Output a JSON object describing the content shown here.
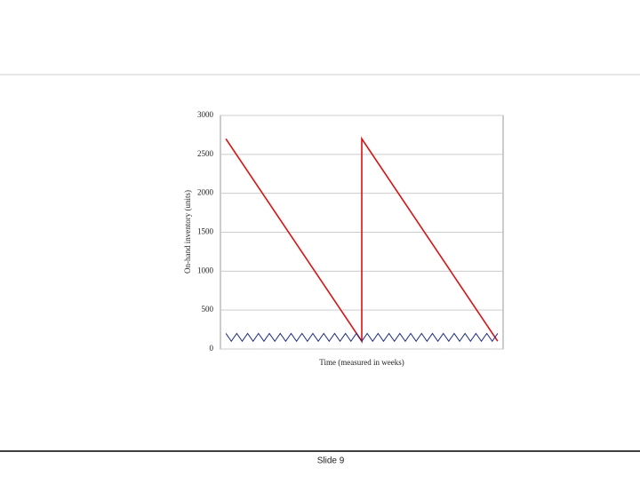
{
  "footer": {
    "text": "Slide 9"
  },
  "chart_data": {
    "type": "line",
    "ylabel": "On-hand inventory (units)",
    "xlabel": "Time (measured in weeks)",
    "xlim": [
      0,
      52
    ],
    "ylim": [
      0,
      3000
    ],
    "yticks": [
      0,
      500,
      1000,
      1500,
      2000,
      2500,
      3000
    ],
    "grid": true,
    "series": [
      {
        "color": "#dd1111",
        "x": [
          1,
          26,
          26,
          51
        ],
        "values": [
          2700,
          100,
          2700,
          100
        ]
      },
      {
        "color": "#1a2a8a",
        "x": [
          1,
          2,
          3,
          4,
          5,
          6,
          7,
          8,
          9,
          10,
          11,
          12,
          13,
          14,
          15,
          16,
          17,
          18,
          19,
          20,
          21,
          22,
          23,
          24,
          25,
          26,
          27,
          28,
          29,
          30,
          31,
          32,
          33,
          34,
          35,
          36,
          37,
          38,
          39,
          40,
          41,
          42,
          43,
          44,
          45,
          46,
          47,
          48,
          49,
          50,
          51
        ],
        "values": [
          200,
          100,
          200,
          100,
          200,
          100,
          200,
          100,
          200,
          100,
          200,
          100,
          200,
          100,
          200,
          100,
          200,
          100,
          200,
          100,
          200,
          100,
          200,
          100,
          200,
          100,
          200,
          100,
          200,
          100,
          200,
          100,
          200,
          100,
          200,
          100,
          200,
          100,
          200,
          100,
          200,
          100,
          200,
          100,
          200,
          100,
          200,
          100,
          200,
          100,
          200
        ]
      }
    ]
  }
}
